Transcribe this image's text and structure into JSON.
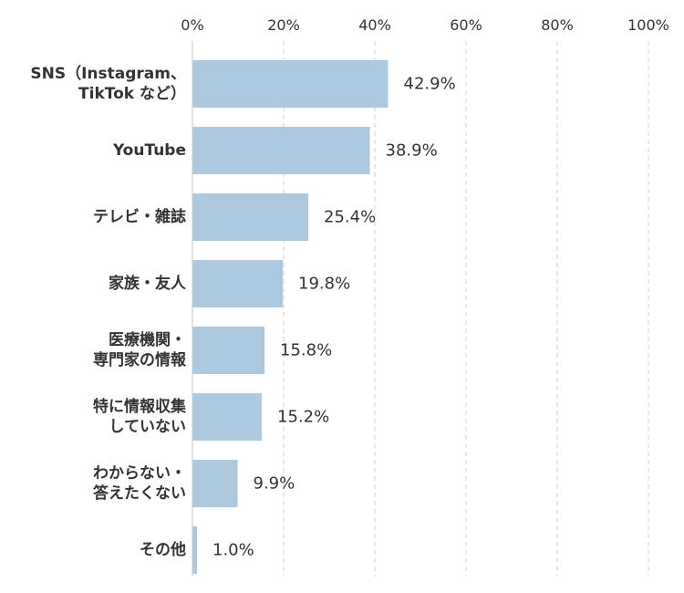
{
  "chart_data": {
    "type": "bar",
    "orientation": "horizontal",
    "categories": [
      [
        "SNS（Instagram、",
        "TikTok など）"
      ],
      [
        "YouTube"
      ],
      [
        "テレビ・雑誌"
      ],
      [
        "家族・友人"
      ],
      [
        "医療機関・",
        "専門家の情報"
      ],
      [
        "特に情報収集",
        "していない"
      ],
      [
        "わからない・",
        "答えたくない"
      ],
      [
        "その他"
      ]
    ],
    "values": [
      42.9,
      38.9,
      25.4,
      19.8,
      15.8,
      15.2,
      9.9,
      1.0
    ],
    "value_labels": [
      "42.9%",
      "38.9%",
      "25.4%",
      "19.8%",
      "15.8%",
      "15.2%",
      "9.9%",
      "1.0%"
    ],
    "xlim": [
      0,
      100
    ],
    "xticks": [
      0,
      20,
      40,
      60,
      80,
      100
    ],
    "xtick_labels": [
      "0%",
      "20%",
      "40%",
      "60%",
      "80%",
      "100%"
    ],
    "axis_position": "top",
    "grid": true,
    "bar_color": "#adc9e0"
  }
}
